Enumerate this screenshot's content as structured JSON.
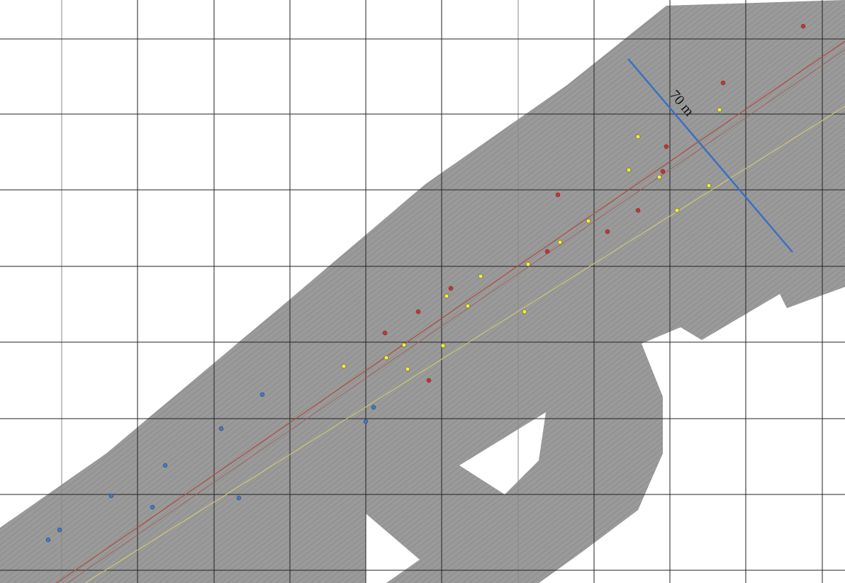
{
  "scale_label": "70 m"
}
